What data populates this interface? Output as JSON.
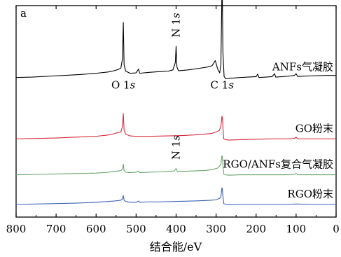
{
  "chart_data": {
    "type": "line",
    "panel_label": "a",
    "xlabel": "结合能/eV",
    "ylabel": "",
    "xlim": [
      800,
      0
    ],
    "x_ticks": [
      "800",
      "700",
      "600",
      "500",
      "400",
      "300",
      "200",
      "100",
      "0"
    ],
    "grid": false,
    "series": [
      {
        "name": "ANFs气凝胶",
        "color": "#000000",
        "offset": 0.66,
        "points": [
          [
            800,
            0.0
          ],
          [
            760,
            0.002
          ],
          [
            720,
            0.006
          ],
          [
            680,
            0.01
          ],
          [
            640,
            0.014
          ],
          [
            600,
            0.02
          ],
          [
            570,
            0.026
          ],
          [
            555,
            0.032
          ],
          [
            545,
            0.038
          ],
          [
            538,
            0.045
          ],
          [
            534,
            0.09
          ],
          [
            532,
            0.26
          ],
          [
            530,
            0.06
          ],
          [
            526,
            0.03
          ],
          [
            515,
            0.02
          ],
          [
            500,
            0.022
          ],
          [
            494,
            0.04
          ],
          [
            491,
            0.02
          ],
          [
            470,
            0.024
          ],
          [
            440,
            0.028
          ],
          [
            420,
            0.03
          ],
          [
            408,
            0.036
          ],
          [
            402,
            0.07
          ],
          [
            400,
            0.148
          ],
          [
            398,
            0.05
          ],
          [
            394,
            0.032
          ],
          [
            370,
            0.036
          ],
          [
            340,
            0.044
          ],
          [
            320,
            0.05
          ],
          [
            310,
            0.056
          ],
          [
            302,
            0.08
          ],
          [
            296,
            0.04
          ],
          [
            291,
            0.022
          ],
          [
            288,
            0.06
          ],
          [
            285.5,
            0.4
          ],
          [
            284.5,
            0.4
          ],
          [
            283,
            0.12
          ],
          [
            280,
            0.005
          ],
          [
            276,
            -0.006
          ],
          [
            268,
            -0.004
          ],
          [
            240,
            0.0
          ],
          [
            200,
            0.004
          ],
          [
            196,
            0.016
          ],
          [
            193,
            0.0
          ],
          [
            160,
            0.004
          ],
          [
            154,
            0.018
          ],
          [
            151,
            0.002
          ],
          [
            120,
            0.006
          ],
          [
            104,
            0.01
          ],
          [
            100,
            0.018
          ],
          [
            96,
            0.005
          ],
          [
            60,
            0.008
          ],
          [
            20,
            0.01
          ],
          [
            0,
            0.01
          ]
        ]
      },
      {
        "name": "GO粉末",
        "color": "#d62c3c",
        "offset": 0.37,
        "points": [
          [
            800,
            0.0
          ],
          [
            750,
            0.002
          ],
          [
            700,
            0.004
          ],
          [
            650,
            0.008
          ],
          [
            600,
            0.012
          ],
          [
            570,
            0.018
          ],
          [
            555,
            0.024
          ],
          [
            545,
            0.03
          ],
          [
            538,
            0.032
          ],
          [
            534,
            0.06
          ],
          [
            532,
            0.12
          ],
          [
            530,
            0.04
          ],
          [
            526,
            0.022
          ],
          [
            515,
            0.014
          ],
          [
            500,
            0.012
          ],
          [
            470,
            0.012
          ],
          [
            420,
            0.014
          ],
          [
            380,
            0.016
          ],
          [
            340,
            0.02
          ],
          [
            310,
            0.026
          ],
          [
            298,
            0.034
          ],
          [
            292,
            0.04
          ],
          [
            288,
            0.06
          ],
          [
            285.5,
            0.106
          ],
          [
            284.5,
            0.104
          ],
          [
            283,
            0.06
          ],
          [
            281,
            0.0
          ],
          [
            276,
            -0.004
          ],
          [
            268,
            -0.006
          ],
          [
            240,
            -0.004
          ],
          [
            200,
            -0.002
          ],
          [
            160,
            0.0
          ],
          [
            120,
            0.0
          ],
          [
            104,
            0.002
          ],
          [
            100,
            0.008
          ],
          [
            96,
            0.0
          ],
          [
            60,
            0.0
          ],
          [
            20,
            0.0
          ],
          [
            0,
            0.0
          ]
        ]
      },
      {
        "name": "RGO/ANFs复合气凝胶",
        "color": "#6aa56d",
        "offset": 0.2,
        "points": [
          [
            800,
            0.0
          ],
          [
            750,
            0.002
          ],
          [
            700,
            0.004
          ],
          [
            650,
            0.006
          ],
          [
            600,
            0.008
          ],
          [
            570,
            0.012
          ],
          [
            555,
            0.016
          ],
          [
            545,
            0.018
          ],
          [
            538,
            0.02
          ],
          [
            534,
            0.03
          ],
          [
            532,
            0.05
          ],
          [
            530,
            0.02
          ],
          [
            526,
            0.012
          ],
          [
            515,
            0.01
          ],
          [
            500,
            0.012
          ],
          [
            494,
            0.018
          ],
          [
            491,
            0.01
          ],
          [
            470,
            0.012
          ],
          [
            440,
            0.014
          ],
          [
            420,
            0.016
          ],
          [
            405,
            0.018
          ],
          [
            400,
            0.03
          ],
          [
            397,
            0.016
          ],
          [
            390,
            0.016
          ],
          [
            360,
            0.018
          ],
          [
            330,
            0.02
          ],
          [
            310,
            0.024
          ],
          [
            300,
            0.03
          ],
          [
            296,
            0.032
          ],
          [
            292,
            0.04
          ],
          [
            288,
            0.05
          ],
          [
            285.5,
            0.09
          ],
          [
            284.5,
            0.088
          ],
          [
            283,
            0.05
          ],
          [
            281,
            0.004
          ],
          [
            276,
            0.0
          ],
          [
            268,
            -0.002
          ],
          [
            240,
            0.0
          ],
          [
            200,
            0.0
          ],
          [
            160,
            0.0
          ],
          [
            120,
            0.0
          ],
          [
            104,
            0.002
          ],
          [
            100,
            0.006
          ],
          [
            96,
            0.0
          ],
          [
            60,
            0.0
          ],
          [
            20,
            0.0
          ],
          [
            0,
            0.0
          ]
        ]
      },
      {
        "name": "RGO粉末",
        "color": "#3d63b3",
        "offset": 0.06,
        "points": [
          [
            800,
            0.0
          ],
          [
            750,
            0.002
          ],
          [
            700,
            0.004
          ],
          [
            650,
            0.006
          ],
          [
            600,
            0.01
          ],
          [
            570,
            0.014
          ],
          [
            555,
            0.016
          ],
          [
            545,
            0.018
          ],
          [
            538,
            0.02
          ],
          [
            534,
            0.026
          ],
          [
            532,
            0.042
          ],
          [
            530,
            0.02
          ],
          [
            526,
            0.014
          ],
          [
            515,
            0.01
          ],
          [
            500,
            0.01
          ],
          [
            494,
            0.016
          ],
          [
            491,
            0.01
          ],
          [
            470,
            0.012
          ],
          [
            440,
            0.012
          ],
          [
            400,
            0.014
          ],
          [
            360,
            0.016
          ],
          [
            330,
            0.018
          ],
          [
            310,
            0.02
          ],
          [
            300,
            0.022
          ],
          [
            292,
            0.028
          ],
          [
            288,
            0.036
          ],
          [
            285.5,
            0.078
          ],
          [
            284.5,
            0.076
          ],
          [
            283,
            0.04
          ],
          [
            281,
            0.004
          ],
          [
            276,
            0.0
          ],
          [
            268,
            -0.002
          ],
          [
            240,
            0.0
          ],
          [
            200,
            0.0
          ],
          [
            160,
            0.0
          ],
          [
            120,
            0.0
          ],
          [
            100,
            0.002
          ],
          [
            60,
            0.0
          ],
          [
            20,
            0.0
          ],
          [
            0,
            0.0
          ]
        ]
      }
    ],
    "annotations": [
      {
        "main": "O 1",
        "italic": "s",
        "x": 532,
        "series": 0,
        "vertical": false
      },
      {
        "main": "N 1",
        "italic": "s",
        "x": 400,
        "series": 0,
        "vertical": true
      },
      {
        "main": "C 1",
        "italic": "s",
        "x": 285,
        "series": 0,
        "vertical": false
      },
      {
        "main": "N 1",
        "italic": "s",
        "x": 400,
        "series": 2,
        "vertical": true
      }
    ]
  }
}
